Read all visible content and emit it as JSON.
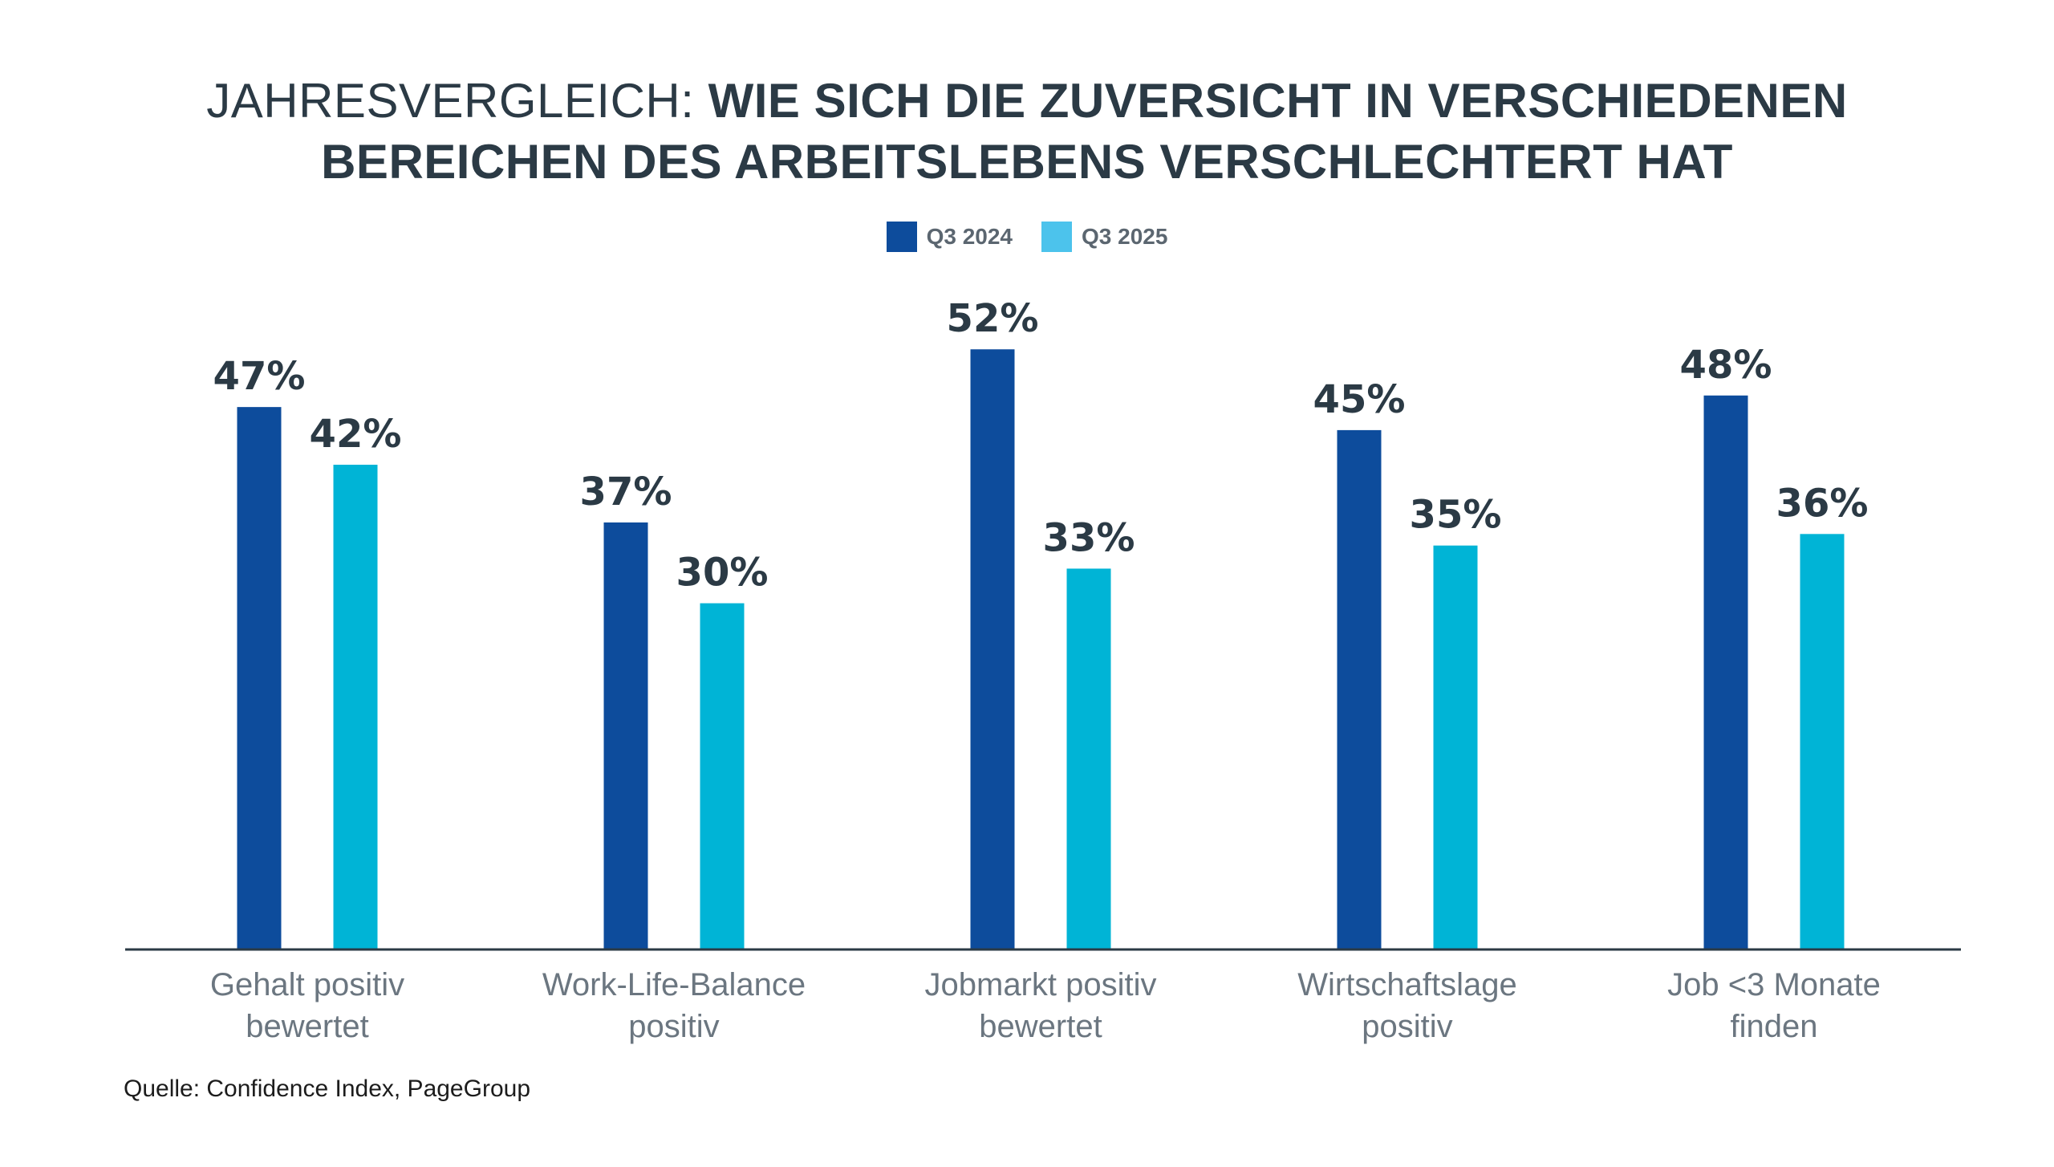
{
  "title": {
    "lead": "JAHRESVERGLEICH:",
    "main_line1": "WIE SICH DIE ZUVERSICHT IN VERSCHIEDENEN",
    "main_line2": "BEREICHEN DES ARBEITSLEBENS VERSCHLECHTERT HAT"
  },
  "legend": [
    {
      "label": "Q3 2024",
      "color": "#0d4c9c"
    },
    {
      "label": "Q3 2025",
      "color": "#4cc3ec"
    }
  ],
  "source": "Quelle: Confidence Index, PageGroup",
  "chart_data": {
    "type": "bar",
    "categories": [
      [
        "Gehalt positiv",
        "bewertet"
      ],
      [
        "Work-Life-Balance",
        "positiv"
      ],
      [
        "Jobmarkt positiv",
        "bewertet"
      ],
      [
        "Wirtschaftslage",
        "positiv"
      ],
      [
        "Job <3 Monate",
        "finden"
      ]
    ],
    "series": [
      {
        "name": "Q3 2024",
        "values": [
          47,
          37,
          52,
          45,
          48
        ],
        "labels": [
          "47%",
          "37%",
          "52%",
          "45%",
          "48%"
        ],
        "color": "#0d4c9c"
      },
      {
        "name": "Q3 2025",
        "values": [
          42,
          30,
          33,
          35,
          36
        ],
        "labels": [
          "42%",
          "30%",
          "33%",
          "35%",
          "36%"
        ],
        "color": "#00b4d6"
      }
    ],
    "ylim": [
      0,
      100
    ],
    "grid": false,
    "legend": "top-center"
  }
}
